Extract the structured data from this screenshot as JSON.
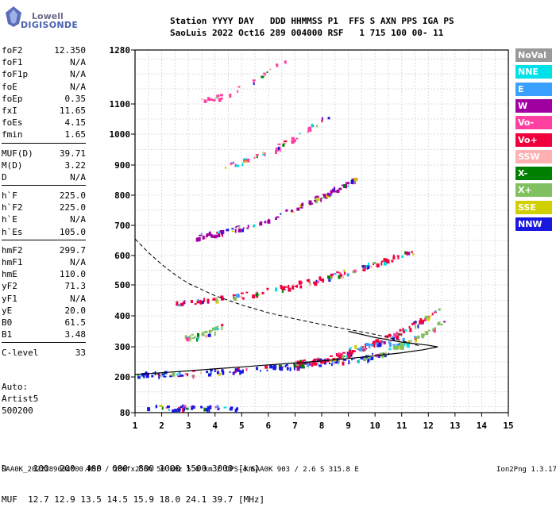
{
  "logo": {
    "line1": "Lowell",
    "line2": "DIGISONDE"
  },
  "header": {
    "row1": "Station YYYY DAY   DDD HHMMSS P1  FFS S AXN PPS IGA PS",
    "row2": "SaoLuis 2022 Oct16 289 004000 RSF   1 715 100 00- 11"
  },
  "params": [
    {
      "group": [
        {
          "name": "foF2",
          "value": "12.350"
        },
        {
          "name": "foF1",
          "value": "N/A"
        },
        {
          "name": "foF1p",
          "value": "N/A"
        },
        {
          "name": "foE",
          "value": "N/A"
        },
        {
          "name": "foEp",
          "value": "0.35"
        },
        {
          "name": "fxI",
          "value": "11.65"
        },
        {
          "name": "foEs",
          "value": "4.15"
        },
        {
          "name": "fmin",
          "value": "1.65"
        }
      ]
    },
    {
      "group": [
        {
          "name": "MUF(D)",
          "value": "39.71"
        },
        {
          "name": "M(D)",
          "value": "3.22"
        },
        {
          "name": "D",
          "value": "N/A"
        }
      ]
    },
    {
      "group": [
        {
          "name": "h`F",
          "value": "225.0"
        },
        {
          "name": "h`F2",
          "value": "225.0"
        },
        {
          "name": "h`E",
          "value": "N/A"
        },
        {
          "name": "h`Es",
          "value": "105.0"
        }
      ]
    },
    {
      "group": [
        {
          "name": "hmF2",
          "value": "299.7"
        },
        {
          "name": "hmF1",
          "value": "N/A"
        },
        {
          "name": "hmE",
          "value": "110.0"
        },
        {
          "name": "yF2",
          "value": "71.3"
        },
        {
          "name": "yF1",
          "value": "N/A"
        },
        {
          "name": "yE",
          "value": "20.0"
        },
        {
          "name": "B0",
          "value": "61.5"
        },
        {
          "name": "B1",
          "value": "3.48"
        }
      ]
    },
    {
      "group": [
        {
          "name": "C-level",
          "value": "33"
        }
      ]
    }
  ],
  "auto": {
    "line1": "Auto:",
    "line2": "Artist5",
    "line3": "500200"
  },
  "legend": [
    {
      "label": "NoVal",
      "color": "#999999"
    },
    {
      "label": "NNE",
      "color": "#00e0e8"
    },
    {
      "label": "E",
      "color": "#3aa0ff"
    },
    {
      "label": "W",
      "color": "#a000a0"
    },
    {
      "label": "Vo-",
      "color": "#ff40a0"
    },
    {
      "label": "Vo+",
      "color": "#f0003c"
    },
    {
      "label": "SSW",
      "color": "#ffb0b0"
    },
    {
      "label": "X-",
      "color": "#008000"
    },
    {
      "label": "X+",
      "color": "#80c060"
    },
    {
      "label": "SSE",
      "color": "#d0d000"
    },
    {
      "label": "NNW",
      "color": "#1818e0"
    }
  ],
  "footer": {
    "row1": "D     100  200  400  600  800 1000 1500 3000 [km]",
    "row2": "MUF  12.7 12.9 13.5 14.5 15.9 18.0 24.1 39.7 [MHz]",
    "file": "SAA0K_2022289004000.RSF / 280fx256h 50 kHz 5.0 km / DPS-4 SAA0K 903 / 2.6 S 315.8 E",
    "version": "Ion2Png 1.3.17"
  },
  "chart_data": {
    "type": "scatter",
    "x_ticks": [
      "1",
      "2",
      "3",
      "4",
      "5",
      "6",
      "7",
      "8",
      "9",
      "10",
      "11",
      "12",
      "13",
      "14",
      "15"
    ],
    "y_ticks": [
      "80",
      "200",
      "300",
      "400",
      "500",
      "600",
      "700",
      "800",
      "900",
      "1000",
      "1100",
      "1280"
    ],
    "x_range": [
      1,
      15
    ],
    "y_range": [
      80,
      1280
    ],
    "grid": true,
    "traces": [
      {
        "name": "Es",
        "x_start": 1.3,
        "x_end": 4.8,
        "h_start": 100,
        "h_end": 98,
        "main_color": "#1818e0",
        "density": 40
      },
      {
        "name": "F-base",
        "x_start": 1.0,
        "x_end": 10.5,
        "h_start": 210,
        "h_end": 275,
        "main_color": "#1818e0",
        "density": 150
      },
      {
        "name": "F-o",
        "x_start": 7.0,
        "x_end": 12.4,
        "h_start": 248,
        "h_end": 420,
        "main_color": "#f0003c",
        "density": 130
      },
      {
        "name": "F-x",
        "x_start": 9.5,
        "x_end": 12.6,
        "h_start": 270,
        "h_end": 390,
        "main_color": "#80c060",
        "density": 45
      },
      {
        "name": "F-oblique-blue",
        "x_start": 8.8,
        "x_end": 11.5,
        "h_start": 300,
        "h_end": 330,
        "main_color": "#3aa0ff",
        "density": 30
      },
      {
        "name": "Es-2hop",
        "x_start": 2.8,
        "x_end": 4.3,
        "h_start": 330,
        "h_end": 370,
        "main_color": "#80c060",
        "density": 30
      },
      {
        "name": "2F",
        "x_start": 2.5,
        "x_end": 11.5,
        "h_start": 445,
        "h_end": 620,
        "main_color": "#f0003c",
        "density": 120
      },
      {
        "name": "3F",
        "x_start": 3.0,
        "x_end": 9.3,
        "h_start": 665,
        "h_end": 860,
        "main_color": "#a000a0",
        "density": 100
      },
      {
        "name": "4F",
        "x_start": 4.0,
        "x_end": 8.3,
        "h_start": 895,
        "h_end": 1070,
        "main_color": "#ff40a0",
        "density": 45
      },
      {
        "name": "5F",
        "x_start": 3.3,
        "x_end": 7.0,
        "h_start": 1110,
        "h_end": 1280,
        "main_color": "#ff40a0",
        "density": 25
      }
    ],
    "profile_curve": [
      [
        1.0,
        208
      ],
      [
        2.0,
        214
      ],
      [
        3.0,
        220
      ],
      [
        4.0,
        227
      ],
      [
        5.0,
        233
      ],
      [
        6.0,
        240
      ],
      [
        7.0,
        246
      ],
      [
        8.0,
        253
      ],
      [
        9.0,
        261
      ],
      [
        10.0,
        270
      ],
      [
        11.0,
        280
      ],
      [
        11.8,
        290
      ],
      [
        12.35,
        299.7
      ],
      [
        12.0,
        305
      ],
      [
        11.0,
        315
      ],
      [
        10.0,
        330
      ],
      [
        9.0,
        350
      ]
    ],
    "dashed_curve": [
      [
        1.0,
        655
      ],
      [
        1.5,
        610
      ],
      [
        2.0,
        570
      ],
      [
        2.5,
        535
      ],
      [
        3.0,
        505
      ],
      [
        4.0,
        465
      ],
      [
        5.0,
        435
      ],
      [
        6.0,
        410
      ],
      [
        7.0,
        390
      ],
      [
        8.0,
        372
      ],
      [
        9.0,
        356
      ],
      [
        10.0,
        340
      ],
      [
        11.0,
        320
      ],
      [
        11.7,
        302
      ]
    ]
  }
}
